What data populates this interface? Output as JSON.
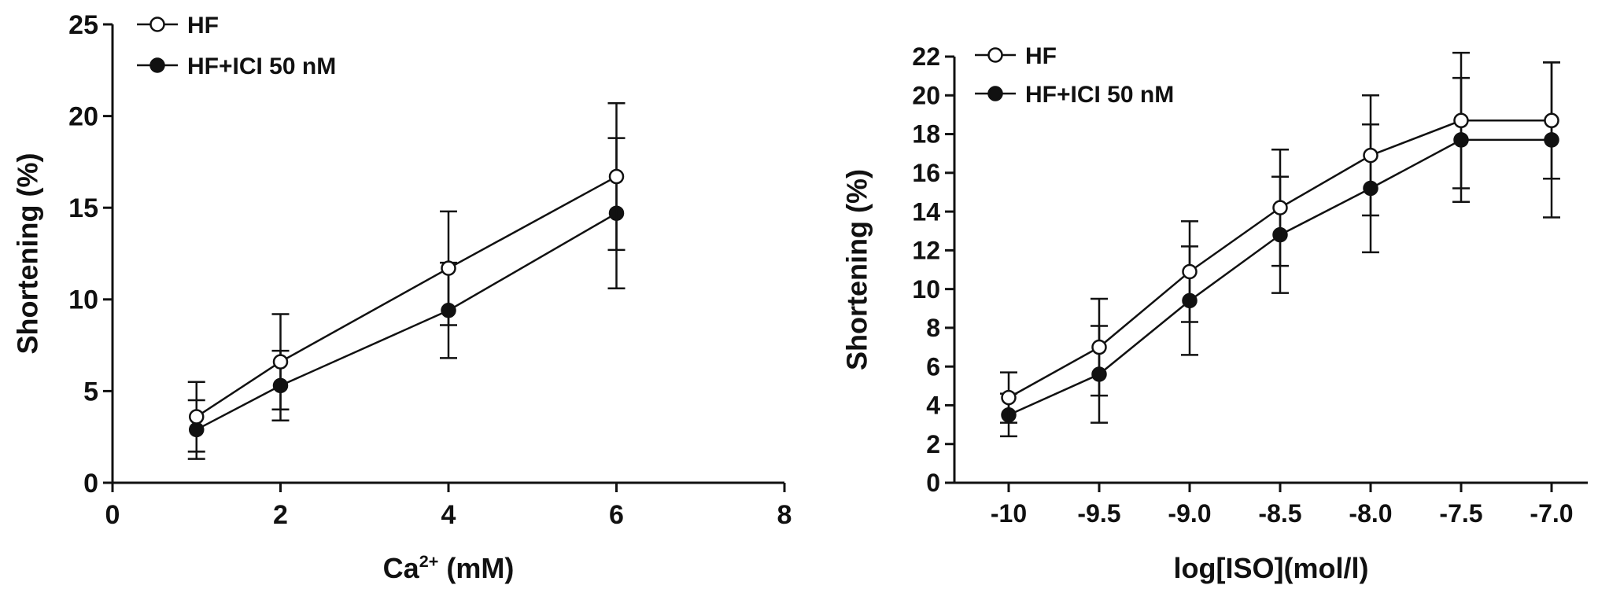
{
  "chart_data": [
    {
      "type": "line",
      "xlabel_main": "Ca",
      "xlabel_sup": "2+",
      "xlabel_rest": " (mM)",
      "ylabel": "Shortening (%)",
      "xlim": [
        0,
        8
      ],
      "ylim": [
        0,
        25
      ],
      "xticks": [
        0,
        2,
        4,
        6,
        8
      ],
      "yticks": [
        0,
        5,
        10,
        15,
        20,
        25
      ],
      "xtick_labels": [
        "0",
        "2",
        "4",
        "6",
        "8"
      ],
      "ytick_labels": [
        "0",
        "5",
        "10",
        "15",
        "20",
        "25"
      ],
      "legend_placement": "top-left",
      "series": [
        {
          "name": "HF",
          "marker": "open-circle",
          "x": [
            1,
            2,
            4,
            6
          ],
          "y": [
            3.6,
            6.6,
            11.7,
            16.7
          ],
          "err": [
            1.9,
            2.6,
            3.1,
            4.0
          ]
        },
        {
          "name": "HF+ICI 50 nM",
          "marker": "filled-circle",
          "x": [
            1,
            2,
            4,
            6
          ],
          "y": [
            2.9,
            5.3,
            9.4,
            14.7
          ],
          "err": [
            1.6,
            1.9,
            2.6,
            4.1
          ]
        }
      ]
    },
    {
      "type": "line",
      "xlabel": "log[ISO](mol/l)",
      "ylabel": "Shortening (%)",
      "xlim": [
        -10.3,
        -6.8
      ],
      "ylim": [
        0,
        22
      ],
      "xticks": [
        -10,
        -9.5,
        -9.0,
        -8.5,
        -8.0,
        -7.5,
        -7.0
      ],
      "yticks": [
        0,
        2,
        4,
        6,
        8,
        10,
        12,
        14,
        16,
        18,
        20,
        22
      ],
      "xtick_labels": [
        "-10",
        "-9.5",
        "-9.0",
        "-8.5",
        "-8.0",
        "-7.5",
        "-7.0"
      ],
      "ytick_labels": [
        "0",
        "2",
        "4",
        "6",
        "8",
        "10",
        "12",
        "14",
        "16",
        "18",
        "20",
        "22"
      ],
      "legend_placement": "top-left",
      "series": [
        {
          "name": "HF",
          "marker": "open-circle",
          "x": [
            -10,
            -9.5,
            -9.0,
            -8.5,
            -8.0,
            -7.5,
            -7.0
          ],
          "y": [
            4.4,
            7.0,
            10.9,
            14.2,
            16.9,
            18.7,
            18.7
          ],
          "err": [
            1.3,
            2.5,
            2.6,
            3.0,
            3.1,
            3.5,
            3.0
          ]
        },
        {
          "name": "HF+ICI 50 nM",
          "marker": "filled-circle",
          "x": [
            -10,
            -9.5,
            -9.0,
            -8.5,
            -8.0,
            -7.5,
            -7.0
          ],
          "y": [
            3.5,
            5.6,
            9.4,
            12.8,
            15.2,
            17.7,
            17.7
          ],
          "err": [
            1.1,
            2.5,
            2.8,
            3.0,
            3.3,
            3.2,
            4.0
          ]
        }
      ]
    }
  ]
}
